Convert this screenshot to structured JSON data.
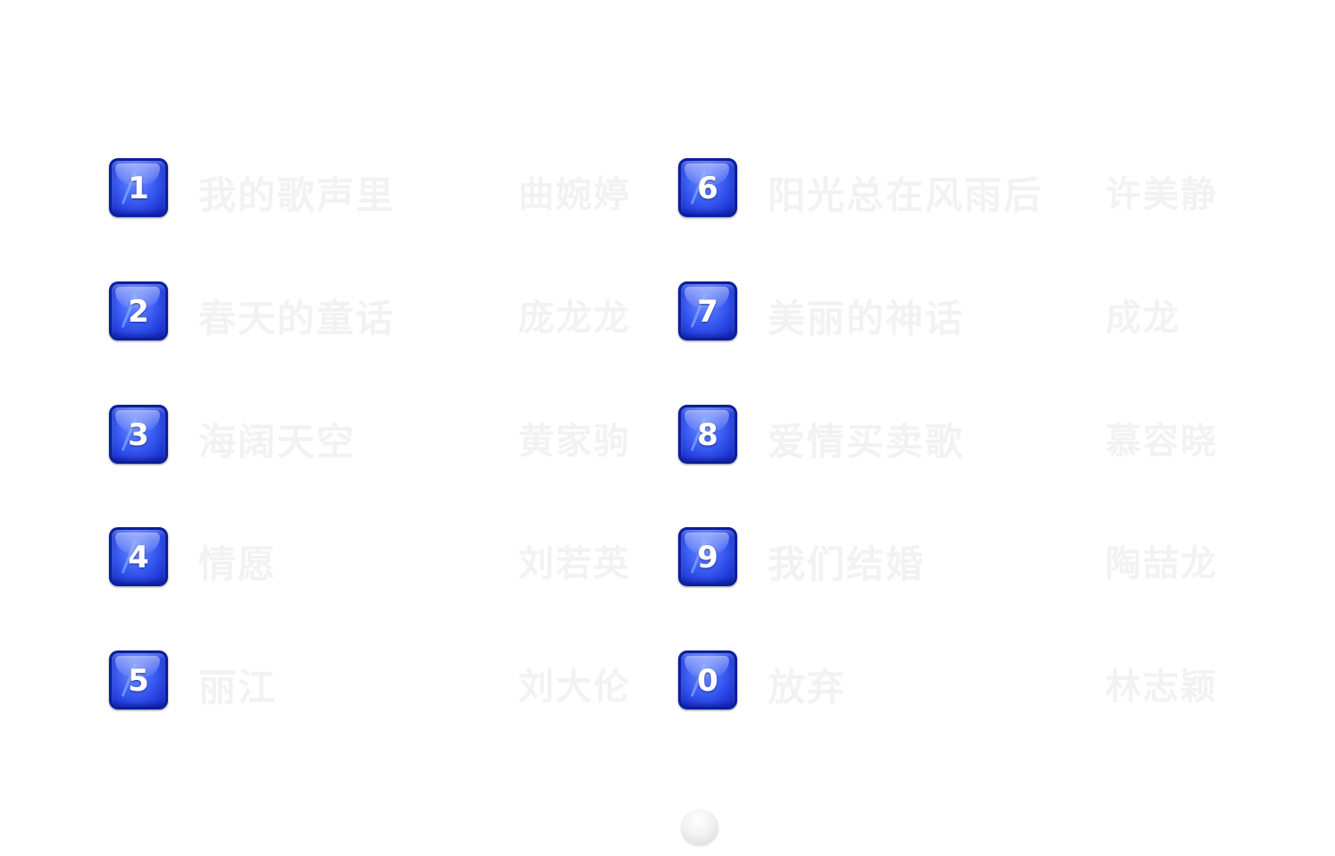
{
  "songs": [
    {
      "key": "1",
      "title": "我的歌声里",
      "artist": "曲婉婷"
    },
    {
      "key": "2",
      "title": "春天的童话",
      "artist": "庞龙龙"
    },
    {
      "key": "3",
      "title": "海阔天空",
      "artist": "黄家驹"
    },
    {
      "key": "4",
      "title": "情愿",
      "artist": "刘若英"
    },
    {
      "key": "5",
      "title": "丽江",
      "artist": "刘大伦"
    },
    {
      "key": "6",
      "title": "阳光总在风雨后",
      "artist": "许美静"
    },
    {
      "key": "7",
      "title": "美丽的神话",
      "artist": "成龙"
    },
    {
      "key": "8",
      "title": "爱情买卖歌",
      "artist": "慕容晓"
    },
    {
      "key": "9",
      "title": "我们结婚",
      "artist": "陶喆龙"
    },
    {
      "key": "0",
      "title": "放弃",
      "artist": "林志颖"
    }
  ],
  "pager": {
    "current_page": 1
  }
}
